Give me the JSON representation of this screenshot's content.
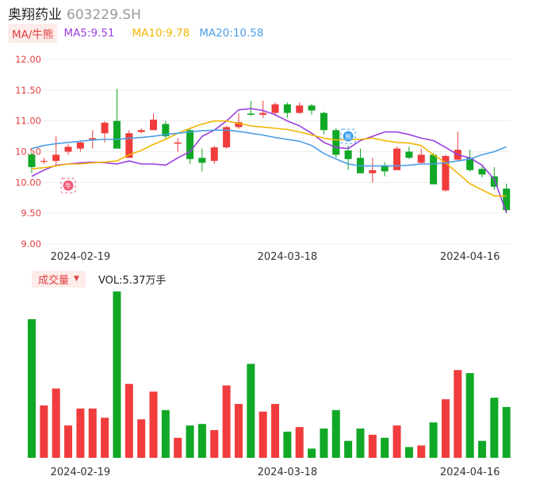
{
  "header": {
    "name": "奥翔药业",
    "code": "603229.SH"
  },
  "ma_legend": {
    "tag": "MA/牛熊",
    "ma5": "MA5:9.51",
    "ma10": "MA10:9.78",
    "ma20": "MA20:10.58"
  },
  "volume_legend": {
    "tag": "成交量",
    "value": "VOL:5.37万手"
  },
  "markers": {
    "bull_icon": "牛",
    "bear_icon": "熊"
  },
  "colors": {
    "up": "#f03c3c",
    "down": "#10a826",
    "ma5": "#9b3fe0",
    "ma10": "#f2b600",
    "ma20": "#4a9ee8",
    "ytick": "#e04040"
  },
  "chart_data": {
    "type": "candlestick",
    "ylim": [
      9.0,
      12.0
    ],
    "y_ticks": [
      "12.00",
      "11.50",
      "11.00",
      "10.50",
      "10.00",
      "9.50",
      "9.00"
    ],
    "x_tick_labels": [
      {
        "index": 4,
        "label": "2024-02-19"
      },
      {
        "index": 21,
        "label": "2024-03-18"
      },
      {
        "index": 36,
        "label": "2024-04-16"
      }
    ],
    "candles": [
      {
        "o": 10.45,
        "c": 10.25,
        "h": 10.5,
        "l": 10.15
      },
      {
        "o": 10.35,
        "c": 10.35,
        "h": 10.4,
        "l": 10.3
      },
      {
        "o": 10.35,
        "c": 10.45,
        "h": 10.75,
        "l": 10.3
      },
      {
        "o": 10.5,
        "c": 10.58,
        "h": 10.62,
        "l": 10.45
      },
      {
        "o": 10.55,
        "c": 10.65,
        "h": 10.68,
        "l": 10.5
      },
      {
        "o": 10.7,
        "c": 10.72,
        "h": 10.85,
        "l": 10.55
      },
      {
        "o": 10.8,
        "c": 10.97,
        "h": 11.0,
        "l": 10.65
      },
      {
        "o": 11.0,
        "c": 10.55,
        "h": 11.52,
        "l": 10.55
      },
      {
        "o": 10.4,
        "c": 10.8,
        "h": 10.85,
        "l": 10.4
      },
      {
        "o": 10.82,
        "c": 10.85,
        "h": 10.88,
        "l": 10.8
      },
      {
        "o": 10.85,
        "c": 11.02,
        "h": 11.12,
        "l": 10.85
      },
      {
        "o": 10.95,
        "c": 10.75,
        "h": 11.0,
        "l": 10.7
      },
      {
        "o": 10.63,
        "c": 10.65,
        "h": 10.72,
        "l": 10.5
      },
      {
        "o": 10.85,
        "c": 10.38,
        "h": 10.88,
        "l": 10.3
      },
      {
        "o": 10.4,
        "c": 10.32,
        "h": 10.55,
        "l": 10.18
      },
      {
        "o": 10.35,
        "c": 10.57,
        "h": 10.6,
        "l": 10.3
      },
      {
        "o": 10.57,
        "c": 10.9,
        "h": 10.92,
        "l": 10.55
      },
      {
        "o": 10.9,
        "c": 10.98,
        "h": 11.12,
        "l": 10.87
      },
      {
        "o": 11.12,
        "c": 11.1,
        "h": 11.33,
        "l": 11.08
      },
      {
        "o": 11.1,
        "c": 11.13,
        "h": 11.33,
        "l": 11.05
      },
      {
        "o": 11.13,
        "c": 11.27,
        "h": 11.3,
        "l": 11.08
      },
      {
        "o": 11.27,
        "c": 11.13,
        "h": 11.3,
        "l": 11.05
      },
      {
        "o": 11.13,
        "c": 11.25,
        "h": 11.3,
        "l": 11.12
      },
      {
        "o": 11.25,
        "c": 11.17,
        "h": 11.28,
        "l": 11.1
      },
      {
        "o": 11.13,
        "c": 10.85,
        "h": 11.15,
        "l": 10.78
      },
      {
        "o": 10.85,
        "c": 10.45,
        "h": 10.88,
        "l": 10.4
      },
      {
        "o": 10.52,
        "c": 10.38,
        "h": 10.6,
        "l": 10.2
      },
      {
        "o": 10.4,
        "c": 10.15,
        "h": 10.55,
        "l": 10.15
      },
      {
        "o": 10.15,
        "c": 10.2,
        "h": 10.4,
        "l": 10.0
      },
      {
        "o": 10.28,
        "c": 10.18,
        "h": 10.33,
        "l": 10.1
      },
      {
        "o": 10.2,
        "c": 10.55,
        "h": 10.58,
        "l": 10.2
      },
      {
        "o": 10.5,
        "c": 10.4,
        "h": 10.58,
        "l": 10.38
      },
      {
        "o": 10.32,
        "c": 10.45,
        "h": 10.55,
        "l": 10.3
      },
      {
        "o": 10.45,
        "c": 9.97,
        "h": 10.48,
        "l": 9.97
      },
      {
        "o": 9.87,
        "c": 10.43,
        "h": 10.45,
        "l": 9.85
      },
      {
        "o": 10.37,
        "c": 10.53,
        "h": 10.83,
        "l": 10.35
      },
      {
        "o": 10.4,
        "c": 10.2,
        "h": 10.53,
        "l": 10.18
      },
      {
        "o": 10.22,
        "c": 10.13,
        "h": 10.27,
        "l": 10.08
      },
      {
        "o": 10.1,
        "c": 9.93,
        "h": 10.25,
        "l": 9.88
      },
      {
        "o": 9.9,
        "c": 9.55,
        "h": 9.98,
        "l": 9.5
      }
    ],
    "ma5": [
      10.1,
      10.2,
      10.28,
      10.3,
      10.32,
      10.33,
      10.32,
      10.3,
      10.35,
      10.3,
      10.3,
      10.28,
      10.4,
      10.5,
      10.75,
      10.85,
      11.0,
      11.18,
      11.2,
      11.17,
      11.1,
      11.0,
      10.92,
      10.8,
      10.65,
      10.57,
      10.55,
      10.68,
      10.75,
      10.82,
      10.82,
      10.78,
      10.72,
      10.68,
      10.57,
      10.45,
      10.4,
      10.28,
      10.05,
      9.51
    ],
    "ma10": [
      10.22,
      10.24,
      10.27,
      10.3,
      10.3,
      10.32,
      10.33,
      10.35,
      10.45,
      10.52,
      10.62,
      10.7,
      10.8,
      10.88,
      10.95,
      11.0,
      11.0,
      10.96,
      10.92,
      10.9,
      10.88,
      10.86,
      10.82,
      10.77,
      10.72,
      10.69,
      10.7,
      10.7,
      10.72,
      10.68,
      10.65,
      10.64,
      10.6,
      10.45,
      10.32,
      10.15,
      9.98,
      9.88,
      9.78,
      9.78
    ],
    "ma20": [
      10.55,
      10.6,
      10.63,
      10.65,
      10.67,
      10.69,
      10.7,
      10.7,
      10.72,
      10.73,
      10.75,
      10.78,
      10.8,
      10.82,
      10.84,
      10.85,
      10.85,
      10.83,
      10.8,
      10.77,
      10.73,
      10.7,
      10.67,
      10.6,
      10.47,
      10.38,
      10.3,
      10.27,
      10.27,
      10.27,
      10.27,
      10.28,
      10.3,
      10.3,
      10.32,
      10.35,
      10.38,
      10.45,
      10.5,
      10.58
    ],
    "volume": [
      90,
      34,
      45,
      21,
      32,
      32,
      26,
      108,
      48,
      25,
      43,
      31,
      13,
      21,
      22,
      18,
      47,
      35,
      61,
      30,
      35,
      17,
      20,
      6,
      19,
      31,
      11,
      19,
      15,
      13,
      21,
      7,
      8,
      23,
      38,
      57,
      55,
      11,
      39,
      33
    ],
    "volume_max": 108
  }
}
